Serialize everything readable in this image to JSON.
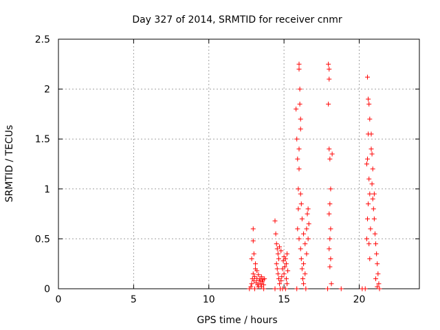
{
  "chart_data": {
    "type": "scatter",
    "title": "Day 327 of 2014, SRMTID for receiver cnmr",
    "xlabel": "GPS time / hours",
    "ylabel": "SRMTID / TECUs",
    "xlim": [
      0,
      24
    ],
    "ylim": [
      0,
      2.5
    ],
    "xticks": [
      "0",
      "5",
      "10",
      "15",
      "20"
    ],
    "yticks": [
      "0",
      "0.5",
      "1",
      "1.5",
      "2",
      "2.5"
    ],
    "grid": true,
    "marker": "plus",
    "color": "#ff0000",
    "points": [
      [
        12.7,
        0.0
      ],
      [
        12.8,
        0.02
      ],
      [
        12.85,
        0.05
      ],
      [
        12.9,
        0.1
      ],
      [
        12.95,
        0.15
      ],
      [
        13.0,
        0.08
      ],
      [
        13.05,
        0.12
      ],
      [
        13.1,
        0.2
      ],
      [
        13.15,
        0.06
      ],
      [
        13.2,
        0.1
      ],
      [
        13.25,
        0.04
      ],
      [
        13.3,
        0.14
      ],
      [
        13.35,
        0.08
      ],
      [
        13.4,
        0.1
      ],
      [
        13.45,
        0.05
      ],
      [
        13.5,
        0.12
      ],
      [
        13.55,
        0.07
      ],
      [
        13.6,
        0.09
      ],
      [
        13.65,
        0.04
      ],
      [
        13.7,
        0.1
      ],
      [
        12.95,
        0.6
      ],
      [
        12.95,
        0.48
      ],
      [
        13.0,
        0.35
      ],
      [
        13.1,
        0.25
      ],
      [
        13.2,
        0.18
      ],
      [
        12.85,
        0.3
      ],
      [
        13.05,
        0.0
      ],
      [
        13.3,
        0.02
      ],
      [
        13.5,
        0.02
      ],
      [
        13.65,
        0.0
      ],
      [
        14.4,
        0.68
      ],
      [
        14.45,
        0.55
      ],
      [
        14.5,
        0.45
      ],
      [
        14.55,
        0.4
      ],
      [
        14.6,
        0.35
      ],
      [
        14.65,
        0.3
      ],
      [
        14.5,
        0.25
      ],
      [
        14.55,
        0.2
      ],
      [
        14.6,
        0.15
      ],
      [
        14.65,
        0.1
      ],
      [
        14.7,
        0.05
      ],
      [
        14.75,
        0.0
      ],
      [
        14.8,
        0.08
      ],
      [
        14.85,
        0.12
      ],
      [
        14.9,
        0.2
      ],
      [
        14.95,
        0.28
      ],
      [
        15.0,
        0.15
      ],
      [
        15.05,
        0.22
      ],
      [
        15.1,
        0.3
      ],
      [
        15.15,
        0.1
      ],
      [
        15.2,
        0.05
      ],
      [
        15.25,
        0.18
      ],
      [
        14.4,
        0.0
      ],
      [
        14.9,
        0.0
      ],
      [
        15.1,
        0.0
      ],
      [
        14.7,
        0.42
      ],
      [
        14.8,
        0.38
      ],
      [
        15.0,
        0.32
      ],
      [
        15.15,
        0.25
      ],
      [
        15.2,
        0.35
      ],
      [
        15.8,
        1.8
      ],
      [
        15.85,
        1.5
      ],
      [
        15.9,
        1.3
      ],
      [
        15.95,
        1.0
      ],
      [
        16.0,
        2.25
      ],
      [
        16.0,
        2.2
      ],
      [
        16.05,
        2.0
      ],
      [
        16.05,
        1.85
      ],
      [
        16.1,
        1.7
      ],
      [
        16.1,
        1.6
      ],
      [
        16.0,
        1.4
      ],
      [
        16.0,
        1.2
      ],
      [
        15.95,
        0.8
      ],
      [
        15.9,
        0.6
      ],
      [
        16.0,
        0.5
      ],
      [
        16.1,
        0.4
      ],
      [
        16.15,
        0.3
      ],
      [
        16.2,
        0.2
      ],
      [
        16.25,
        0.1
      ],
      [
        16.3,
        0.05
      ],
      [
        16.1,
        0.95
      ],
      [
        16.15,
        0.85
      ],
      [
        16.2,
        0.7
      ],
      [
        16.3,
        0.55
      ],
      [
        16.4,
        0.45
      ],
      [
        16.5,
        0.6
      ],
      [
        16.55,
        0.75
      ],
      [
        16.6,
        0.8
      ],
      [
        16.65,
        0.65
      ],
      [
        16.5,
        0.35
      ],
      [
        16.4,
        0.15
      ],
      [
        16.3,
        0.25
      ],
      [
        16.6,
        0.5
      ],
      [
        15.85,
        0.0
      ],
      [
        16.45,
        0.0
      ],
      [
        17.95,
        2.25
      ],
      [
        18.0,
        2.2
      ],
      [
        18.0,
        2.1
      ],
      [
        17.95,
        1.85
      ],
      [
        18.0,
        1.4
      ],
      [
        18.05,
        1.3
      ],
      [
        18.1,
        1.0
      ],
      [
        18.05,
        0.85
      ],
      [
        18.0,
        0.75
      ],
      [
        18.1,
        0.6
      ],
      [
        18.05,
        0.5
      ],
      [
        18.0,
        0.4
      ],
      [
        18.1,
        0.3
      ],
      [
        18.05,
        0.22
      ],
      [
        18.15,
        0.05
      ],
      [
        17.9,
        0.0
      ],
      [
        18.2,
        1.35
      ],
      [
        18.8,
        0.0
      ],
      [
        20.2,
        0.0
      ],
      [
        20.4,
        0.0
      ],
      [
        20.55,
        2.12
      ],
      [
        20.6,
        1.9
      ],
      [
        20.65,
        1.85
      ],
      [
        20.7,
        1.7
      ],
      [
        20.6,
        1.55
      ],
      [
        20.55,
        1.3
      ],
      [
        20.5,
        1.25
      ],
      [
        20.65,
        1.1
      ],
      [
        20.7,
        0.95
      ],
      [
        20.6,
        0.85
      ],
      [
        20.55,
        0.7
      ],
      [
        20.5,
        0.5
      ],
      [
        20.65,
        0.45
      ],
      [
        20.7,
        0.3
      ],
      [
        20.75,
        0.6
      ],
      [
        20.8,
        1.4
      ],
      [
        20.85,
        1.35
      ],
      [
        20.9,
        1.2
      ],
      [
        20.85,
        1.05
      ],
      [
        20.9,
        0.9
      ],
      [
        20.95,
        0.8
      ],
      [
        21.0,
        0.7
      ],
      [
        21.05,
        0.55
      ],
      [
        21.1,
        0.45
      ],
      [
        21.15,
        0.35
      ],
      [
        21.2,
        0.25
      ],
      [
        21.25,
        0.15
      ],
      [
        21.3,
        0.05
      ],
      [
        21.35,
        0.0
      ],
      [
        21.1,
        0.1
      ],
      [
        21.2,
        0.02
      ],
      [
        21.0,
        0.95
      ],
      [
        20.8,
        1.55
      ]
    ]
  }
}
